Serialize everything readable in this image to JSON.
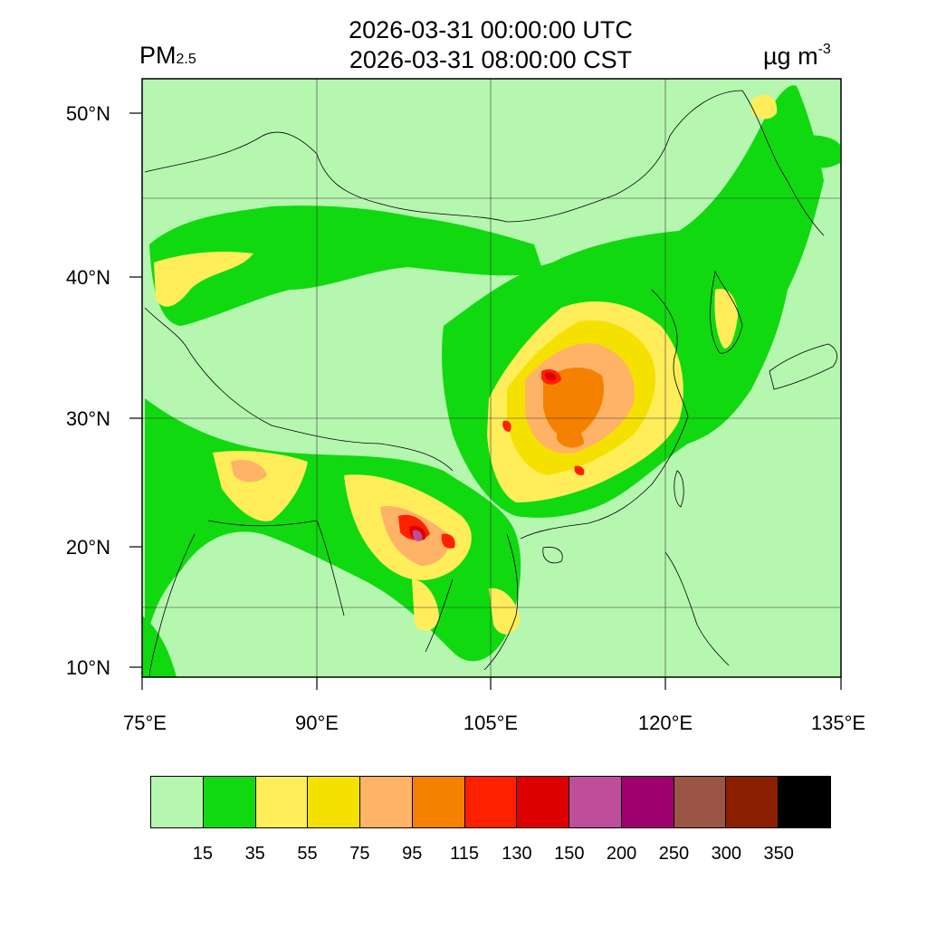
{
  "header": {
    "utc_time": "2026-03-31 00:00:00 UTC",
    "local_time": "2026-03-31 08:00:00 CST",
    "variable": "PM",
    "variable_sub": "2.5",
    "unit": "µg m",
    "unit_sup": "-3"
  },
  "map": {
    "lon_labels": [
      "75°E",
      "90°E",
      "105°E",
      "120°E",
      "135°E"
    ],
    "lat_labels": [
      "50°N",
      "40°N",
      "30°N",
      "20°N",
      "10°N"
    ],
    "background_color": "#b6f7b0"
  },
  "legend": {
    "colors": [
      "#b6f7b0",
      "#10d910",
      "#ffed5a",
      "#f5e100",
      "#ffb366",
      "#f58100",
      "#ff2000",
      "#dd0000",
      "#be4d9a",
      "#9e006e",
      "#9a5545",
      "#8a2000",
      "#000000"
    ],
    "labels": [
      "15",
      "35",
      "55",
      "75",
      "95",
      "115",
      "130",
      "150",
      "200",
      "250",
      "300",
      "350"
    ]
  }
}
